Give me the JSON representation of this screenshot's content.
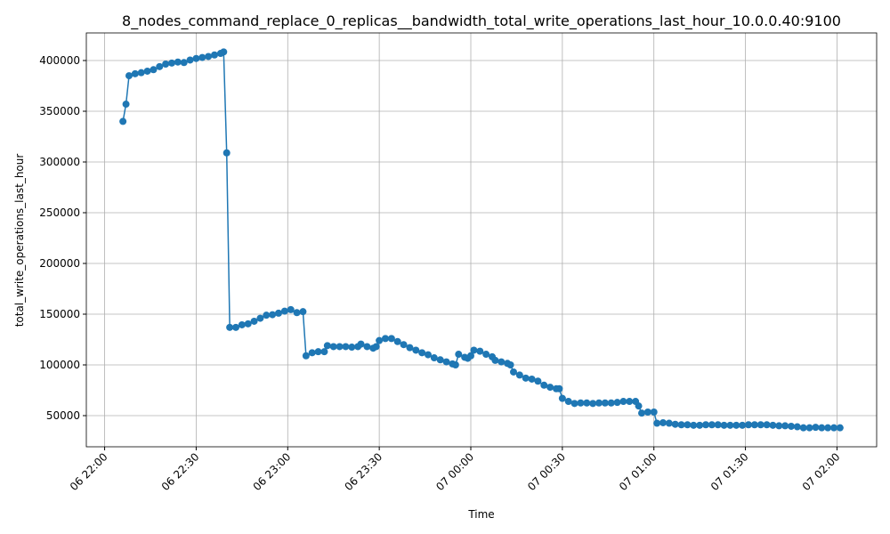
{
  "chart_data": {
    "type": "line",
    "title": "8_nodes_command_replace_0_replicas__bandwidth_total_write_operations_last_hour_10.0.0.40:9100",
    "xlabel": "Time",
    "ylabel": "total_write_operations_last_hour",
    "xlim": [
      "06 21:54",
      "07 02:13"
    ],
    "xticks": [
      "06 22:00",
      "06 22:30",
      "06 23:00",
      "06 23:30",
      "07 00:00",
      "07 00:30",
      "07 01:00",
      "07 01:30",
      "07 02:00"
    ],
    "ylim": [
      19300,
      427200
    ],
    "yticks": [
      50000,
      100000,
      150000,
      200000,
      250000,
      300000,
      350000,
      400000
    ],
    "grid": true,
    "x": [
      "06 22:06",
      "06 22:07",
      "06 22:08",
      "06 22:10",
      "06 22:12",
      "06 22:14",
      "06 22:16",
      "06 22:18",
      "06 22:20",
      "06 22:22",
      "06 22:24",
      "06 22:26",
      "06 22:28",
      "06 22:30",
      "06 22:32",
      "06 22:34",
      "06 22:36",
      "06 22:38",
      "06 22:39",
      "06 22:40",
      "06 22:41",
      "06 22:43",
      "06 22:45",
      "06 22:47",
      "06 22:49",
      "06 22:51",
      "06 22:53",
      "06 22:55",
      "06 22:57",
      "06 22:59",
      "06 23:01",
      "06 23:03",
      "06 23:05",
      "06 23:06",
      "06 23:08",
      "06 23:10",
      "06 23:12",
      "06 23:13",
      "06 23:15",
      "06 23:17",
      "06 23:19",
      "06 23:21",
      "06 23:23",
      "06 23:24",
      "06 23:26",
      "06 23:28",
      "06 23:29",
      "06 23:30",
      "06 23:32",
      "06 23:34",
      "06 23:36",
      "06 23:38",
      "06 23:40",
      "06 23:42",
      "06 23:44",
      "06 23:46",
      "06 23:48",
      "06 23:50",
      "06 23:52",
      "06 23:54",
      "06 23:55",
      "06 23:56",
      "06 23:58",
      "06 23:59",
      "07 00:00",
      "07 00:01",
      "07 00:03",
      "07 00:05",
      "07 00:07",
      "07 00:08",
      "07 00:10",
      "07 00:12",
      "07 00:13",
      "07 00:14",
      "07 00:16",
      "07 00:18",
      "07 00:20",
      "07 00:22",
      "07 00:24",
      "07 00:26",
      "07 00:28",
      "07 00:29",
      "07 00:30",
      "07 00:32",
      "07 00:34",
      "07 00:36",
      "07 00:38",
      "07 00:40",
      "07 00:42",
      "07 00:44",
      "07 00:46",
      "07 00:48",
      "07 00:50",
      "07 00:52",
      "07 00:54",
      "07 00:55",
      "07 00:56",
      "07 00:58",
      "07 01:00",
      "07 01:01",
      "07 01:03",
      "07 01:05",
      "07 01:07",
      "07 01:09",
      "07 01:11",
      "07 01:13",
      "07 01:15",
      "07 01:17",
      "07 01:19",
      "07 01:21",
      "07 01:23",
      "07 01:25",
      "07 01:27",
      "07 01:29",
      "07 01:31",
      "07 01:33",
      "07 01:35",
      "07 01:37",
      "07 01:39",
      "07 01:41",
      "07 01:43",
      "07 01:45",
      "07 01:47",
      "07 01:49",
      "07 01:51",
      "07 01:53",
      "07 01:55",
      "07 01:57",
      "07 01:59",
      "07 02:01"
    ],
    "series": [
      {
        "name": "total_write_operations_last_hour",
        "color": "#1f77b4",
        "values": [
          340000,
          357000,
          385000,
          387000,
          388000,
          389500,
          391000,
          394000,
          396500,
          397500,
          398500,
          398000,
          400500,
          402000,
          403000,
          404000,
          405500,
          407000,
          408500,
          309000,
          137000,
          137000,
          139500,
          140500,
          143000,
          146000,
          149000,
          149500,
          151000,
          153000,
          154500,
          151500,
          152500,
          109000,
          112000,
          113000,
          113000,
          119000,
          118000,
          118000,
          118000,
          117500,
          118000,
          120500,
          118000,
          116500,
          118000,
          124000,
          126000,
          126000,
          123000,
          120000,
          117000,
          114500,
          112000,
          110000,
          107000,
          105000,
          103000,
          101000,
          100000,
          110500,
          107500,
          106500,
          109000,
          114500,
          113500,
          110500,
          108000,
          104500,
          103000,
          101500,
          100000,
          93000,
          90000,
          87000,
          86000,
          84000,
          80000,
          78000,
          76500,
          76500,
          67000,
          64000,
          62000,
          62500,
          62500,
          62000,
          62500,
          62500,
          62500,
          63000,
          64000,
          64000,
          64000,
          59500,
          52500,
          53500,
          53500,
          42500,
          43000,
          42500,
          41500,
          41000,
          41000,
          40500,
          40500,
          41000,
          41000,
          41000,
          40500,
          40500,
          40500,
          40500,
          41000,
          41000,
          41000,
          41000,
          40500,
          40000,
          40000,
          39500,
          39000,
          38000,
          38000,
          38500,
          38000,
          38000,
          38000,
          38000
        ]
      }
    ]
  }
}
